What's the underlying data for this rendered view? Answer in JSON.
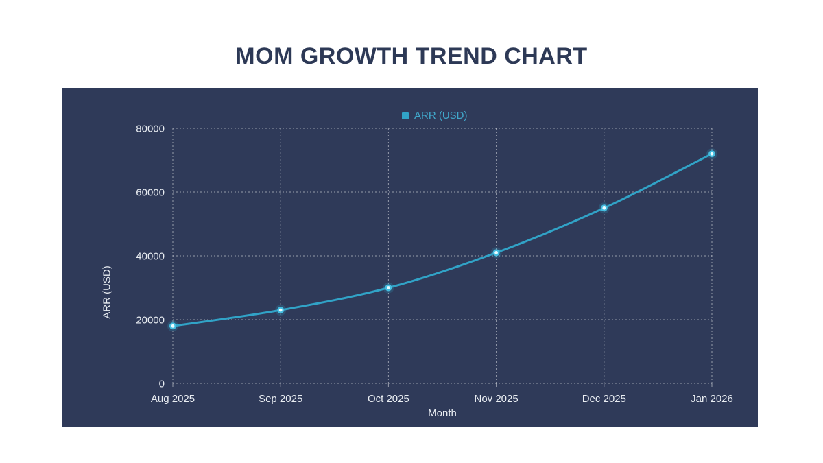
{
  "page": {
    "title": "MOM GROWTH TREND CHART"
  },
  "chart_data": {
    "type": "line",
    "title": "MOM GROWTH TREND CHART",
    "categories": [
      "Aug 2025",
      "Sep 2025",
      "Oct 2025",
      "Nov 2025",
      "Dec 2025",
      "Jan 2026"
    ],
    "series": [
      {
        "name": "ARR (USD)",
        "values": [
          18000,
          23000,
          30000,
          41000,
          55000,
          72000
        ]
      }
    ],
    "xlabel": "Month",
    "ylabel": "ARR (USD)",
    "ylim": [
      0,
      80000
    ],
    "y_ticks": [
      0,
      20000,
      40000,
      60000,
      80000
    ],
    "legend": {
      "position": "top",
      "entries": [
        "ARR (USD)"
      ]
    },
    "grid": true,
    "smooth": true
  },
  "colors": {
    "page_bg": "#ffffff",
    "panel_bg": "#2f3a59",
    "title_text": "#2d3956",
    "line": "#31a3c7",
    "point_ring": "#45bde0",
    "point_core": "#eafcff",
    "legend_text": "#41a9cc",
    "tick_text": "#e9edf2",
    "gridline": "rgba(255,255,255,0.5)"
  }
}
